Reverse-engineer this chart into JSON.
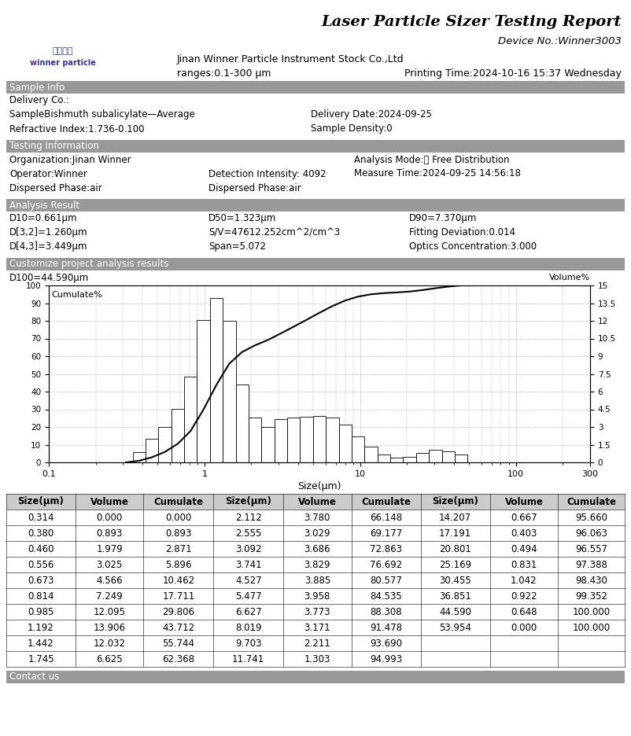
{
  "title": "Laser Particle Sizer Testing Report",
  "device_no": "Device No.:Winner3003",
  "company": "Jinan Winner Particle Instrument Stock Co.,Ltd",
  "ranges": "ranges:0.1-300 μm",
  "printing_time": "Printing Time:2024-10-16 15:37 Wednesday",
  "sample_info_label": "Sample Info",
  "delivery_co": "Delivery Co.:",
  "sample_name": "SampleBishmuth subalicylate—Average",
  "delivery_date": "Delivery Date:2024-09-25",
  "refractive_index": "Refractive Index:1.736-0.100",
  "sample_density": "Sample Density:0",
  "testing_info_label": "Testing Information",
  "organization": "Organization:Jinan Winner",
  "analysis_mode": "Analysis Mode:： Free Distribution",
  "operator": "Operator:Winner",
  "detection_intensity": "Detection Intensity: 4092",
  "measure_time": "Measure Time:2024-09-25 14:56:18",
  "dispersed_phase1": "Dispersed Phase:air",
  "dispersed_phase2": "Dispersed Phase:air",
  "analysis_result_label": "Analysis Result",
  "d10": "D10=0.661μm",
  "d50": "D50=1.323μm",
  "d90": "D90=7.370μm",
  "d32": "D[3,2]=1.260μm",
  "sv": "S/V=47612.252cm^2/cm^3",
  "fitting_deviation": "Fitting Deviation:0.014",
  "d43": "D[4,3]=3.449μm",
  "span": "Span=5.072",
  "optics_concentration": "Optics Concentration:3.000",
  "customize_label": "Customize project analysis results",
  "d100": "D100=44.590μm",
  "contact_us": "Contact us",
  "header_bg": "#999999",
  "bar_sizes": [
    0.314,
    0.38,
    0.46,
    0.556,
    0.673,
    0.814,
    0.985,
    1.192,
    1.442,
    1.745,
    2.112,
    2.555,
    3.092,
    3.741,
    4.527,
    5.477,
    6.627,
    8.019,
    9.703,
    11.741,
    14.207,
    17.191,
    20.801,
    25.169,
    30.455,
    36.851,
    44.59,
    53.954
  ],
  "bar_volumes": [
    0.0,
    0.893,
    1.979,
    3.025,
    4.566,
    7.249,
    12.095,
    13.906,
    12.032,
    6.625,
    3.78,
    3.029,
    3.686,
    3.829,
    3.885,
    3.958,
    3.773,
    3.171,
    2.211,
    1.303,
    0.667,
    0.403,
    0.494,
    0.831,
    1.042,
    0.922,
    0.648,
    0.0
  ],
  "cumulate": [
    0.0,
    0.893,
    2.871,
    5.896,
    10.462,
    17.711,
    29.806,
    43.712,
    55.744,
    62.368,
    66.148,
    69.177,
    72.863,
    76.692,
    80.577,
    84.535,
    88.308,
    91.478,
    93.69,
    94.993,
    95.66,
    96.063,
    96.557,
    97.388,
    98.43,
    99.352,
    100.0,
    100.0
  ],
  "table_data": [
    [
      "0.314",
      "0.000",
      "0.000",
      "2.112",
      "3.780",
      "66.148",
      "14.207",
      "0.667",
      "95.660"
    ],
    [
      "0.380",
      "0.893",
      "0.893",
      "2.555",
      "3.029",
      "69.177",
      "17.191",
      "0.403",
      "96.063"
    ],
    [
      "0.460",
      "1.979",
      "2.871",
      "3.092",
      "3.686",
      "72.863",
      "20.801",
      "0.494",
      "96.557"
    ],
    [
      "0.556",
      "3.025",
      "5.896",
      "3.741",
      "3.829",
      "76.692",
      "25.169",
      "0.831",
      "97.388"
    ],
    [
      "0.673",
      "4.566",
      "10.462",
      "4.527",
      "3.885",
      "80.577",
      "30.455",
      "1.042",
      "98.430"
    ],
    [
      "0.814",
      "7.249",
      "17.711",
      "5.477",
      "3.958",
      "84.535",
      "36.851",
      "0.922",
      "99.352"
    ],
    [
      "0.985",
      "12.095",
      "29.806",
      "6.627",
      "3.773",
      "88.308",
      "44.590",
      "0.648",
      "100.000"
    ],
    [
      "1.192",
      "13.906",
      "43.712",
      "8.019",
      "3.171",
      "91.478",
      "53.954",
      "0.000",
      "100.000"
    ],
    [
      "1.442",
      "12.032",
      "55.744",
      "9.703",
      "2.211",
      "93.690",
      "",
      "",
      ""
    ],
    [
      "1.745",
      "6.625",
      "62.368",
      "11.741",
      "1.303",
      "94.993",
      "",
      "",
      ""
    ]
  ],
  "table_headers": [
    "Size(μm)",
    "Volume",
    "Cumulate",
    "Size(μm)",
    "Volume",
    "Cumulate",
    "Size(μm)",
    "Volume",
    "Cumulate"
  ]
}
